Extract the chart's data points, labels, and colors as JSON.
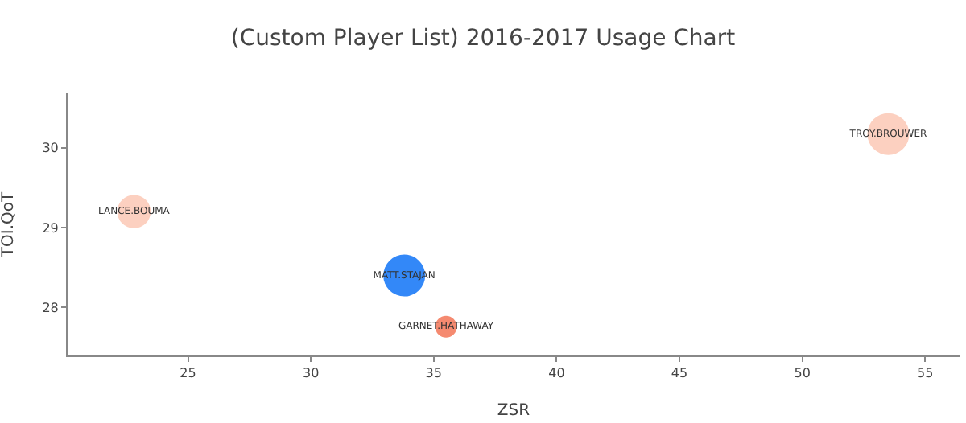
{
  "chart_data": {
    "type": "bubble",
    "title": "(Custom Player List) 2016-2017 Usage Chart",
    "xlabel": "ZSR",
    "ylabel": "TOI.QoT",
    "xlim": [
      20.1,
      56.4
    ],
    "xticks": [
      25,
      30,
      35,
      40,
      45,
      50,
      55
    ],
    "ylim": [
      27.4,
      30.68
    ],
    "yticks": [
      28,
      29,
      30
    ],
    "legend": false,
    "series": [
      {
        "name": "LANCE.BOUMA",
        "color": "#fcd0c0",
        "x": [
          22.8
        ],
        "values": [
          29.2
        ],
        "sizes": [
          0.64
        ]
      },
      {
        "name": "MATT.STAJAN",
        "color": "#3388f8",
        "x": [
          33.8
        ],
        "values": [
          28.4
        ],
        "sizes": [
          1
        ]
      },
      {
        "name": "GARNET.HATHAWAY",
        "color": "#f58a70",
        "x": [
          35.5
        ],
        "values": [
          27.76
        ],
        "sizes": [
          0.27
        ]
      },
      {
        "name": "TROY.BROUWER",
        "color": "#fcd0c0",
        "x": [
          53.5
        ],
        "values": [
          30.17
        ],
        "sizes": [
          1
        ]
      }
    ]
  }
}
